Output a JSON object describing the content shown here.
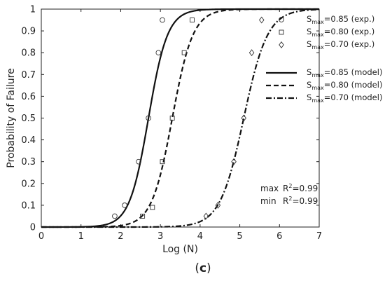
{
  "chart_data": {
    "type": "scatter",
    "xlabel": "Log (N)",
    "ylabel": "Probability of Failure",
    "xlim": [
      0,
      7
    ],
    "ylim": [
      0,
      1
    ],
    "x_ticks": [
      "0",
      "1",
      "2",
      "3",
      "4",
      "5",
      "6",
      "7"
    ],
    "y_ticks": [
      "0",
      "0.1",
      "0.2",
      "0.3",
      "0.4",
      "0.5",
      "0.6",
      "0.7",
      "0.8",
      "0.9",
      "1"
    ],
    "grid": false,
    "legend_position": "top-right",
    "series": [
      {
        "name": "Smax=0.85 (exp.)",
        "label_main": "S",
        "label_sub": "max",
        "label_rest": "=0.85 (exp.)",
        "marker": "circle",
        "points": [
          [
            1.85,
            0.05
          ],
          [
            2.1,
            0.1
          ],
          [
            2.45,
            0.3
          ],
          [
            2.7,
            0.5
          ],
          [
            2.95,
            0.8
          ],
          [
            3.05,
            0.95
          ]
        ]
      },
      {
        "name": "Smax=0.80 (exp.)",
        "label_main": "S",
        "label_sub": "max",
        "label_rest": "=0.80 (exp.)",
        "marker": "square",
        "points": [
          [
            2.55,
            0.05
          ],
          [
            2.8,
            0.09
          ],
          [
            3.05,
            0.3
          ],
          [
            3.3,
            0.5
          ],
          [
            3.6,
            0.8
          ],
          [
            3.8,
            0.95
          ]
        ]
      },
      {
        "name": "Smax=0.70 (exp.)",
        "label_main": "S",
        "label_sub": "max",
        "label_rest": "=0.70 (exp.)",
        "marker": "diamond",
        "points": [
          [
            4.15,
            0.05
          ],
          [
            4.45,
            0.1
          ],
          [
            4.85,
            0.3
          ],
          [
            5.1,
            0.5
          ],
          [
            5.3,
            0.8
          ],
          [
            5.55,
            0.95
          ]
        ]
      },
      {
        "name": "Smax=0.85 (model)",
        "label_main": "S",
        "label_sub": "max",
        "label_rest": "=0.85 (model)",
        "line_style": "solid",
        "curve_center": 2.7,
        "curve_scale": 0.24
      },
      {
        "name": "Smax=0.80 (model)",
        "label_main": "S",
        "label_sub": "max",
        "label_rest": "=0.80 (model)",
        "line_style": "dashed",
        "curve_center": 3.3,
        "curve_scale": 0.26
      },
      {
        "name": "Smax=0.70 (model)",
        "label_main": "S",
        "label_sub": "max",
        "label_rest": "=0.70 (model)",
        "line_style": "dash-dot",
        "curve_center": 5.1,
        "curve_scale": 0.3
      }
    ],
    "annotations": [
      {
        "label": "max",
        "r": "R",
        "sup": "2",
        "value": "=0.99"
      },
      {
        "label": "min",
        "r": "R",
        "sup": "2",
        "value": "=0.99"
      }
    ],
    "caption": {
      "open": "(",
      "letter": "c",
      "close": ")"
    }
  }
}
